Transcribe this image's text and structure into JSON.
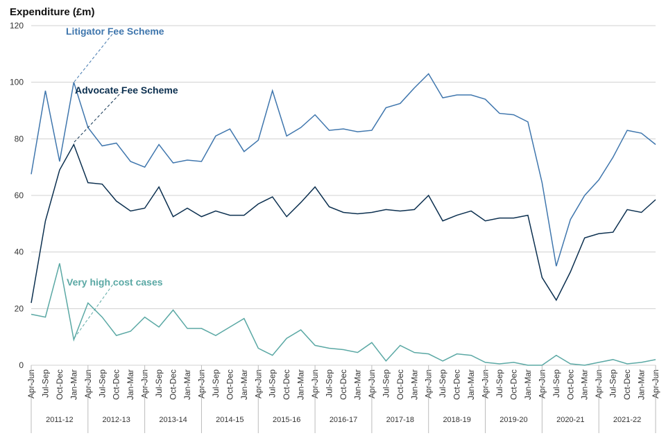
{
  "chart_data": {
    "type": "line",
    "title": "Expenditure (£m)",
    "categories": [
      "Apr-Jun",
      "Jul-Sep",
      "Oct-Dec",
      "Jan-Mar",
      "Apr-Jun",
      "Jul-Sep",
      "Oct-Dec",
      "Jan-Mar",
      "Apr-Jun",
      "Jul-Sep",
      "Oct-Dec",
      "Jan-Mar",
      "Apr-Jun",
      "Jul-Sep",
      "Oct-Dec",
      "Jan-Mar",
      "Apr-Jun",
      "Jul-Sep",
      "Oct-Dec",
      "Jan-Mar",
      "Apr-Jun",
      "Jul-Sep",
      "Oct-Dec",
      "Jan-Mar",
      "Apr-Jun",
      "Jul-Sep",
      "Oct-Dec",
      "Jan-Mar",
      "Apr-Jun",
      "Jul-Sep",
      "Oct-Dec",
      "Jan-Mar",
      "Apr-Jun",
      "Jul-Sep",
      "Oct-Dec",
      "Jan-Mar",
      "Apr-Jun",
      "Jul-Sep",
      "Oct-Dec",
      "Jan-Mar",
      "Apr-Jun",
      "Jul-Sep",
      "Oct-Dec",
      "Jan-Mar",
      "Apr-Jun"
    ],
    "year_groups": [
      "2011-12",
      "2012-13",
      "2013-14",
      "2014-15",
      "2015-16",
      "2016-17",
      "2017-18",
      "2018-19",
      "2019-20",
      "2020-21",
      "2021-22"
    ],
    "series": [
      {
        "name": "Litigator Fee Scheme",
        "color": "#3f76ad",
        "values": [
          67.5,
          97,
          72,
          100,
          84,
          77.5,
          78.5,
          72,
          70,
          78,
          71.5,
          72.5,
          72,
          81,
          83.5,
          75.5,
          79.5,
          97,
          81,
          84,
          88.5,
          83,
          83.5,
          82.5,
          83,
          91,
          92.5,
          98,
          103,
          94.5,
          95.5,
          95.5,
          94,
          89,
          88.5,
          86,
          64.5,
          35,
          51.5,
          60,
          65.5,
          73.5,
          83,
          82,
          78
        ]
      },
      {
        "name": "Advocate Fee Scheme",
        "color": "#0b2f4f",
        "values": [
          22,
          51,
          69,
          78,
          64.5,
          64,
          58,
          54.5,
          55.5,
          63,
          52.5,
          55.5,
          52.5,
          54.5,
          53,
          53,
          57,
          59.5,
          52.5,
          57.5,
          63,
          56,
          54,
          53.5,
          54,
          55,
          54.5,
          55,
          60,
          51,
          53,
          54.5,
          51,
          52,
          52,
          53,
          31,
          23,
          33,
          45,
          46.5,
          47,
          55,
          54,
          58.5
        ]
      },
      {
        "name": "Very high cost cases",
        "color": "#5aa8a4",
        "values": [
          18,
          17,
          36,
          9,
          22,
          17,
          10.5,
          12,
          17,
          13.5,
          19.5,
          13,
          13,
          10.5,
          13.5,
          16.5,
          6,
          3.5,
          9.5,
          12.5,
          7,
          6,
          5.5,
          4.5,
          8,
          1.5,
          7,
          4.5,
          4,
          1.5,
          4,
          3.5,
          1,
          0.5,
          1,
          0,
          0,
          3.5,
          0.5,
          0,
          1,
          2,
          0.5,
          1,
          2
        ]
      }
    ],
    "ylim": [
      0,
      120
    ],
    "yticks": [
      0,
      20,
      40,
      60,
      80,
      100,
      120
    ],
    "grid": true
  }
}
